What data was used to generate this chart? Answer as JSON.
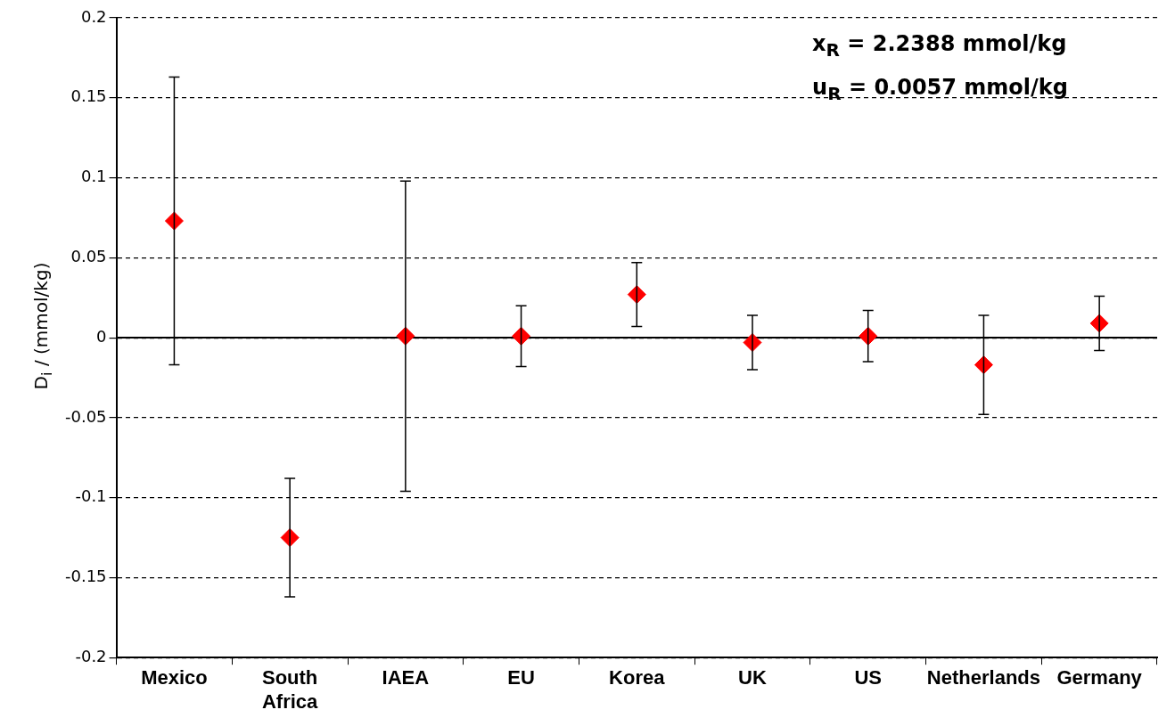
{
  "chart_data": {
    "type": "scatter",
    "ylabel": "D$_{i}$ / (mmol/kg)",
    "annotations": [
      "x$_{R}$ = 2.2388 mmol/kg",
      "u$_{R}$ = 0.0057 mmol/kg"
    ],
    "categories": [
      "Mexico",
      "South Africa",
      "IAEA",
      "EU",
      "Korea",
      "UK",
      "US",
      "Netherlands",
      "Germany"
    ],
    "series": [
      {
        "color": "#ff0000",
        "values": [
          0.073,
          -0.125,
          0.001,
          0.001,
          0.027,
          -0.003,
          0.001,
          -0.017,
          0.009
        ],
        "errors": [
          0.09,
          0.037,
          0.097,
          0.019,
          0.02,
          0.017,
          0.016,
          0.031,
          0.017
        ]
      }
    ],
    "ylim": [
      -0.2,
      0.2
    ],
    "yticks": [
      -0.2,
      -0.15,
      -0.1,
      -0.05,
      0,
      0.05,
      0.1,
      0.15,
      0.2
    ],
    "grid": "y",
    "legend": false,
    "marker": "diamond",
    "ref_lines": [
      {
        "axis": "y",
        "value": 0,
        "color": "#000000",
        "line_style": "solid"
      }
    ]
  }
}
